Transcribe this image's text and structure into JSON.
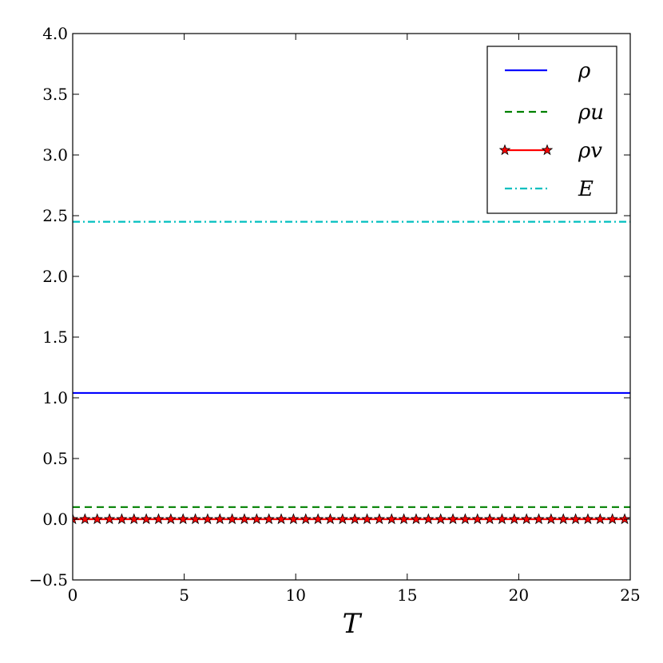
{
  "chart_data": {
    "type": "line",
    "xlabel": "T",
    "ylabel": "",
    "xlim": [
      0,
      25
    ],
    "ylim": [
      -0.5,
      4.0
    ],
    "xticks": [
      0,
      5,
      10,
      15,
      20,
      25
    ],
    "xtick_labels": [
      "0",
      "5",
      "10",
      "15",
      "20",
      "25"
    ],
    "yticks": [
      -0.5,
      0.0,
      0.5,
      1.0,
      1.5,
      2.0,
      2.5,
      3.0,
      3.5,
      4.0
    ],
    "ytick_labels": [
      "−0.5",
      "0.0",
      "0.5",
      "1.0",
      "1.5",
      "2.0",
      "2.5",
      "3.0",
      "3.5",
      "4.0"
    ],
    "grid": false,
    "legend_position": "top-right",
    "series": [
      {
        "name": "ρ",
        "color": "#0000ff",
        "linestyle": "solid",
        "marker": "none",
        "x": [
          0,
          25
        ],
        "values": [
          1.04,
          1.04
        ]
      },
      {
        "name": "ρu",
        "color": "#008000",
        "linestyle": "dashed",
        "marker": "none",
        "x": [
          0,
          25
        ],
        "values": [
          0.1,
          0.1
        ]
      },
      {
        "name": "ρv",
        "color": "#ff0000",
        "linestyle": "solid",
        "marker": "star",
        "x": [
          0.0,
          0.55,
          1.1,
          1.65,
          2.2,
          2.75,
          3.3,
          3.85,
          4.4,
          4.95,
          5.5,
          6.05,
          6.6,
          7.15,
          7.7,
          8.25,
          8.8,
          9.35,
          9.9,
          10.45,
          11.0,
          11.55,
          12.1,
          12.65,
          13.2,
          13.75,
          14.3,
          14.85,
          15.4,
          15.95,
          16.5,
          17.05,
          17.6,
          18.15,
          18.7,
          19.25,
          19.8,
          20.35,
          20.9,
          21.45,
          22.0,
          22.55,
          23.1,
          23.65,
          24.2,
          24.75
        ],
        "values": [
          0.0,
          0.0,
          0.0,
          0.0,
          0.0,
          0.0,
          0.0,
          0.0,
          0.0,
          0.0,
          0.0,
          0.0,
          0.0,
          0.0,
          0.0,
          0.0,
          0.0,
          0.0,
          0.0,
          0.0,
          0.0,
          0.0,
          0.0,
          0.0,
          0.0,
          0.0,
          0.0,
          0.0,
          0.0,
          0.0,
          0.0,
          0.0,
          0.0,
          0.0,
          0.0,
          0.0,
          0.0,
          0.0,
          0.0,
          0.0,
          0.0,
          0.0,
          0.0,
          0.0,
          0.0,
          0.0
        ]
      },
      {
        "name": "E",
        "color": "#00bfbf",
        "linestyle": "dashdot",
        "marker": "none",
        "x": [
          0,
          25
        ],
        "values": [
          2.45,
          2.45
        ]
      }
    ]
  }
}
